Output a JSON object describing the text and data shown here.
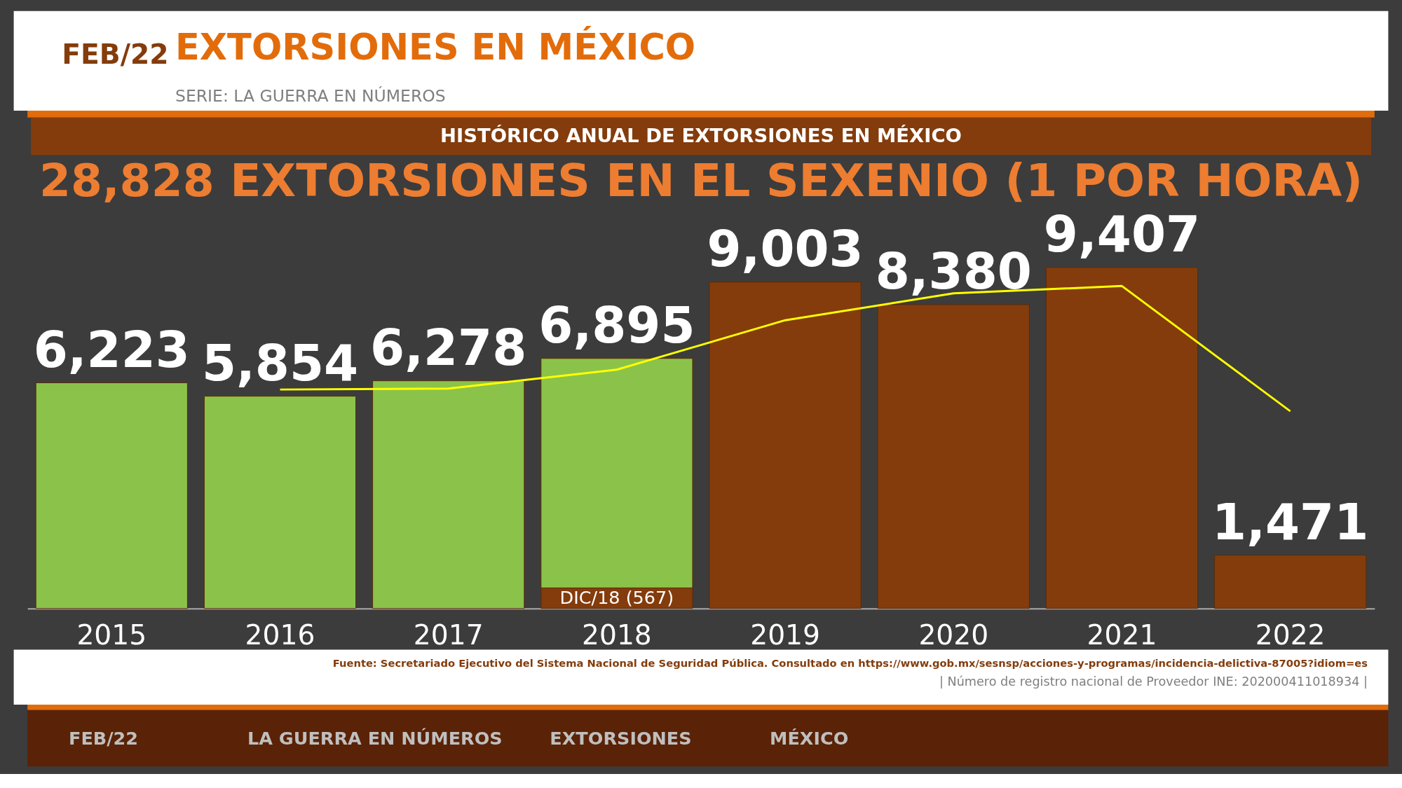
{
  "chart_data": {
    "type": "bar",
    "title": "EXTORSIONES EN MÉXICO",
    "subtitle": "HISTÓRICO ANUAL DE EXTORSIONES EN MÉXICO",
    "annotations": [
      "FEB/22",
      "SERIE: LA GUERRA EN NÚMEROS",
      "28,828 EXTORSIONES EN EL SEXENIO (1 POR HORA)",
      "Fuente: Secretariado Ejecutivo del Sistema Nacional de Seguridad Pública. Consultado en https://www.gob.mx/sesnsp/acciones-y-programas/incidencia-delictiva-87005?idiom=es",
      "| Número de registro nacional de Proveedor INE: 202000411018934 |",
      "FEB/22",
      "LA GUERRA EN NÚMEROS",
      "EXTORSIONES",
      "MÉXICO"
    ],
    "categories": [
      "2015",
      "2016",
      "2017",
      "2018",
      "2019",
      "2020",
      "2021",
      "2022"
    ],
    "stacked": true,
    "series": [
      {
        "color": "#843c0c",
        "values": [
          null,
          null,
          null,
          567,
          9003,
          8380,
          9407,
          1471
        ],
        "value_labels": [
          null,
          null,
          null,
          "DIC/18 (567)",
          null,
          null,
          null,
          null
        ]
      },
      {
        "color": "#8bc34a",
        "values": [
          6223,
          5854,
          6278,
          6328,
          null,
          null,
          null,
          null
        ]
      },
      {
        "type": "line",
        "color": "#ffff00",
        "values": [
          null,
          6038,
          6066,
          6586,
          7949,
          8691,
          8893,
          5439
        ]
      }
    ],
    "totals": [
      "6,223",
      "5,854",
      "6,278",
      "6,895",
      "9,003",
      "8,380",
      "9,407",
      "1,471"
    ],
    "ylim": [
      0,
      12500
    ],
    "tick_labels": "x",
    "grid": false,
    "legend": false
  }
}
